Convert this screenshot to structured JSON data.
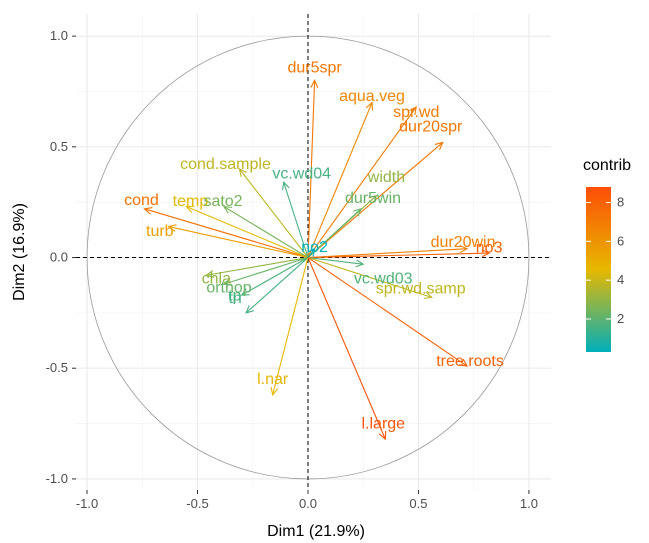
{
  "chart_data": {
    "type": "scatter",
    "subtype": "pca-variable-correlation-circle",
    "title": "",
    "xlabel": "Dim1 (21.9%)",
    "ylabel": "Dim2 (16.9%)",
    "xlim": [
      -1.05,
      1.1
    ],
    "ylim": [
      -1.05,
      1.1
    ],
    "xticks": [
      -1.0,
      -0.5,
      0.0,
      0.5,
      1.0
    ],
    "yticks": [
      -1.0,
      -0.5,
      0.0,
      0.5,
      1.0
    ],
    "xtick_labels": [
      "-1.0",
      "-0.5",
      "0.0",
      "0.5",
      "1.0"
    ],
    "ytick_labels": [
      "-1.0",
      "-0.5",
      "0.0",
      "0.5",
      "1.0"
    ],
    "grid": true,
    "unit_circle": true,
    "legend": {
      "title": "contrib",
      "placement": "right",
      "range": [
        0.3,
        8.8
      ],
      "ticks": [
        2,
        4,
        6,
        8
      ],
      "tick_labels": [
        "2",
        "4",
        "6",
        "8"
      ],
      "colors": [
        "#00AFBB",
        "#E7B800",
        "#FC4E07"
      ]
    },
    "variables": [
      {
        "name": "dur5spr",
        "x": 0.03,
        "y": 0.8,
        "contrib": 7.2
      },
      {
        "name": "aqua.veg",
        "x": 0.29,
        "y": 0.7,
        "contrib": 6.5
      },
      {
        "name": "spr.wd",
        "x": 0.49,
        "y": 0.68,
        "contrib": 7.0
      },
      {
        "name": "dur20spr",
        "x": 0.61,
        "y": 0.52,
        "contrib": 7.2
      },
      {
        "name": "cond.sample",
        "x": -0.31,
        "y": 0.4,
        "contrib": 3.8
      },
      {
        "name": "vc.wd04",
        "x": -0.11,
        "y": 0.34,
        "contrib": 1.6
      },
      {
        "name": "width",
        "x": 0.31,
        "y": 0.28,
        "contrib": 3.0
      },
      {
        "name": "dur5win",
        "x": 0.24,
        "y": 0.22,
        "contrib": 2.2
      },
      {
        "name": "cond",
        "x": -0.74,
        "y": 0.22,
        "contrib": 7.4
      },
      {
        "name": "temp",
        "x": -0.55,
        "y": 0.23,
        "contrib": 4.5
      },
      {
        "name": "sato2",
        "x": -0.38,
        "y": 0.23,
        "contrib": 2.5
      },
      {
        "name": "turb",
        "x": -0.63,
        "y": 0.14,
        "contrib": 5.6
      },
      {
        "name": "no2",
        "x": 0.03,
        "y": 0.04,
        "contrib": 0.3
      },
      {
        "name": "dur20win",
        "x": 0.72,
        "y": 0.04,
        "contrib": 6.8
      },
      {
        "name": "no3",
        "x": 0.82,
        "y": 0.02,
        "contrib": 8.0
      },
      {
        "name": "vc.wd03",
        "x": 0.25,
        "y": -0.03,
        "contrib": 1.8
      },
      {
        "name": "spr.wd.samp",
        "x": 0.56,
        "y": -0.18,
        "contrib": 3.8
      },
      {
        "name": "chla",
        "x": -0.46,
        "y": -0.08,
        "contrib": 3.0
      },
      {
        "name": "orthop",
        "x": -0.38,
        "y": -0.12,
        "contrib": 2.2
      },
      {
        "name": "tp",
        "x": -0.3,
        "y": -0.17,
        "contrib": 1.7
      },
      {
        "name": "tn",
        "x": -0.28,
        "y": -0.25,
        "contrib": 1.6
      },
      {
        "name": "tree.roots",
        "x": 0.72,
        "y": -0.49,
        "contrib": 8.0
      },
      {
        "name": "l.nar",
        "x": -0.16,
        "y": -0.62,
        "contrib": 4.6
      },
      {
        "name": "l.large",
        "x": 0.35,
        "y": -0.82,
        "contrib": 8.6
      }
    ]
  }
}
